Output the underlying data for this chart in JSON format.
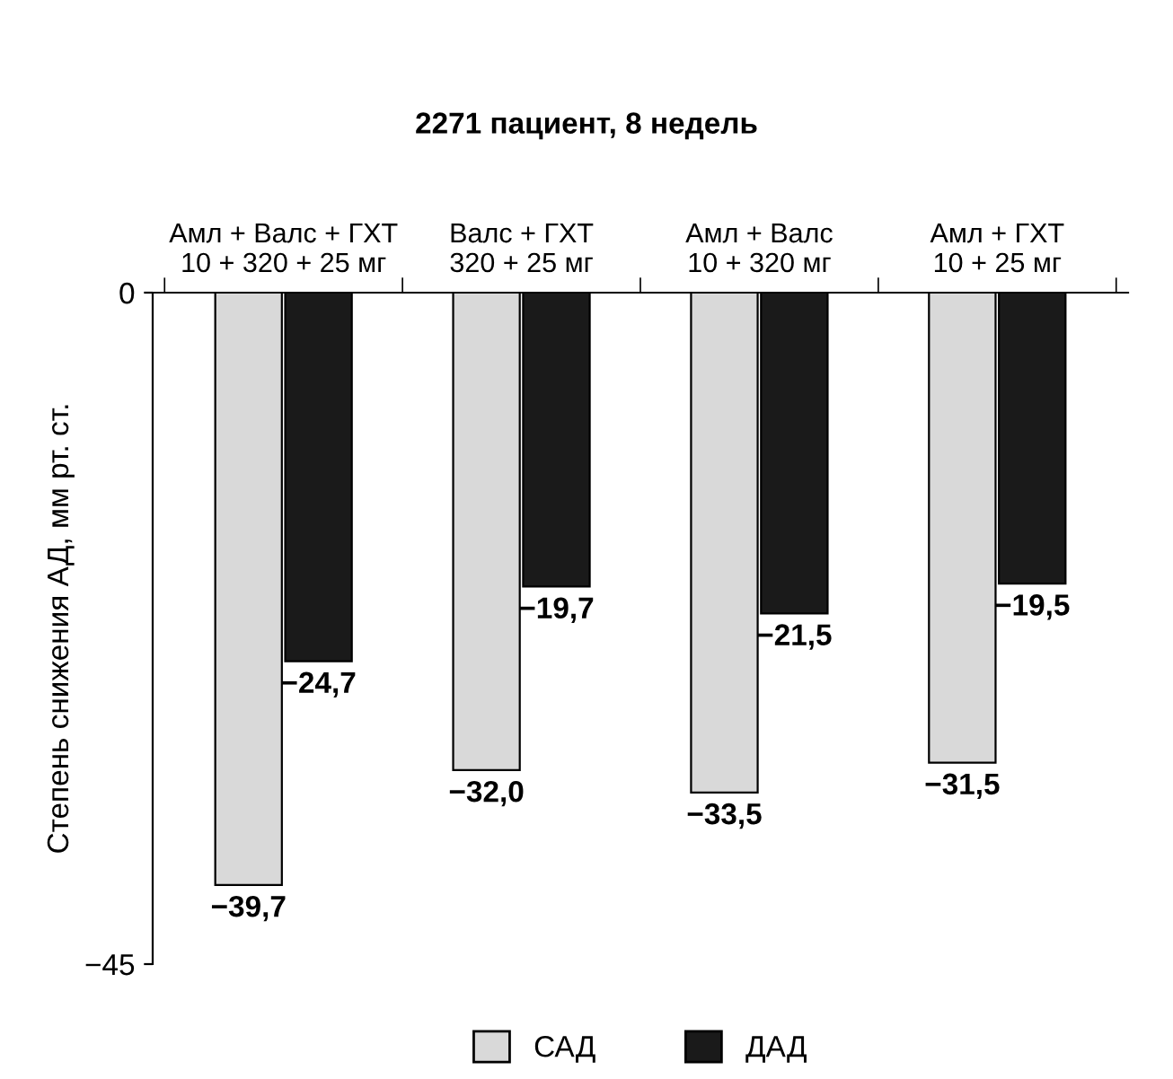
{
  "chart_data": {
    "type": "bar",
    "title": "2271 пациент, 8 недель",
    "categories": [
      "Амл + Валс + ГХТ\n10 + 320 + 25 мг",
      "Валс + ГХТ\n320 + 25 мг",
      "Амл + Валс\n10 + 320 мг",
      "Амл + ГХТ\n10 + 25 мг"
    ],
    "series": [
      {
        "name": "САД",
        "color": "#d9d9d9",
        "values": [
          -39.7,
          -32.0,
          -33.5,
          -31.5
        ],
        "value_labels": [
          "−39,7",
          "−32,0",
          "−33,5",
          "−31,5"
        ]
      },
      {
        "name": "ДАД",
        "color": "#1a1a1a",
        "values": [
          -24.7,
          -19.7,
          -21.5,
          -19.5
        ],
        "value_labels": [
          "−24,7",
          "−19,7",
          "−21,5",
          "−19,5"
        ]
      }
    ],
    "ylabel": "Степень снижения АД, мм рт. ст.",
    "ylim": [
      -45,
      0
    ],
    "yticks": [
      0,
      {
        "value": -45,
        "label": "−45"
      }
    ],
    "grid": false,
    "legend": "bottom"
  }
}
